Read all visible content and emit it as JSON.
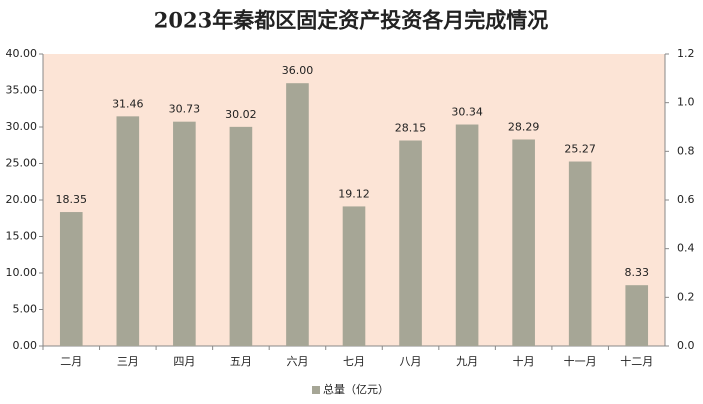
{
  "chart_data": {
    "type": "bar",
    "title": "2023年秦都区固定资产投资各月完成情况",
    "categories": [
      "二月",
      "三月",
      "四月",
      "五月",
      "六月",
      "七月",
      "八月",
      "九月",
      "十月",
      "十一月",
      "十二月"
    ],
    "series": [
      {
        "name": "总量（亿元）",
        "color": "#a6a696",
        "values": [
          18.35,
          31.46,
          30.73,
          30.02,
          36,
          19.12,
          28.15,
          30.34,
          28.29,
          25.27,
          8.33
        ],
        "value_labels": [
          "18.35",
          "31.46",
          "30.73",
          "30.02",
          "36.00",
          "19.12",
          "28.15",
          "30.34",
          "28.29",
          "25.27",
          "8.33"
        ]
      }
    ],
    "ylim": [
      0,
      40
    ],
    "yticks": [
      {
        "value": 0,
        "label": "0.00"
      },
      {
        "value": 5,
        "label": "5.00"
      },
      {
        "value": 10,
        "label": "10.00"
      },
      {
        "value": 15,
        "label": "15.00"
      },
      {
        "value": 20,
        "label": "20.00"
      },
      {
        "value": 25,
        "label": "25.00"
      },
      {
        "value": 30,
        "label": "30.00"
      },
      {
        "value": 35,
        "label": "35.00"
      },
      {
        "value": 40,
        "label": "40.00"
      }
    ],
    "y2lim": [
      0,
      1.2
    ],
    "y2ticks": [
      {
        "value": 0,
        "label": "0.0"
      },
      0.2,
      0.4,
      0.6,
      0.8,
      {
        "value": 1,
        "label": "1.0"
      },
      1.2
    ],
    "plot_background": "#fce4d6",
    "legend": "bottom"
  }
}
